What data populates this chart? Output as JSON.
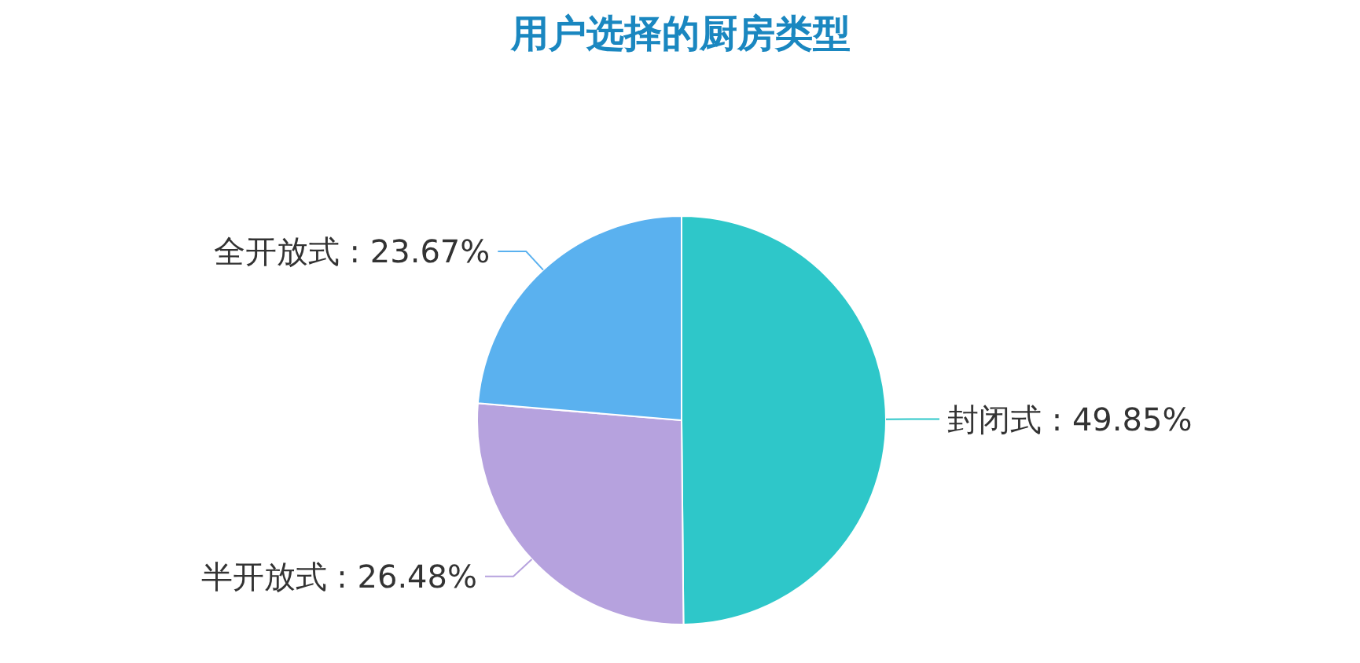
{
  "chart_data": {
    "type": "pie",
    "title": "用户选择的厨房类型",
    "categories": [
      "封闭式",
      "半开放式",
      "全开放式"
    ],
    "values": [
      49.85,
      26.48,
      23.67
    ],
    "colors": [
      "#2ec7c9",
      "#b6a2de",
      "#5ab1ef"
    ],
    "value_labels": [
      ": 49.85%",
      ": 26.48%",
      ": 23.67%"
    ]
  }
}
